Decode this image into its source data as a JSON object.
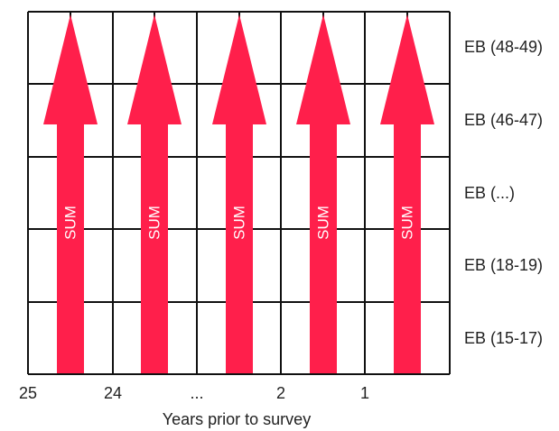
{
  "diagram": {
    "row_labels": [
      "EB (48-49)",
      "EB (46-47)",
      "EB (...)",
      "EB (18-19)",
      "EB (15-17)"
    ],
    "x_tick_labels": [
      "25",
      "24",
      "...",
      "2",
      "1"
    ],
    "x_axis_title": "Years prior to survey",
    "arrow_label": "SUM",
    "arrow_count": 5,
    "colors": {
      "arrow": "#ff1f4b",
      "grid": "#111111",
      "text": "#222222",
      "arrow_text": "#ffffff"
    }
  }
}
